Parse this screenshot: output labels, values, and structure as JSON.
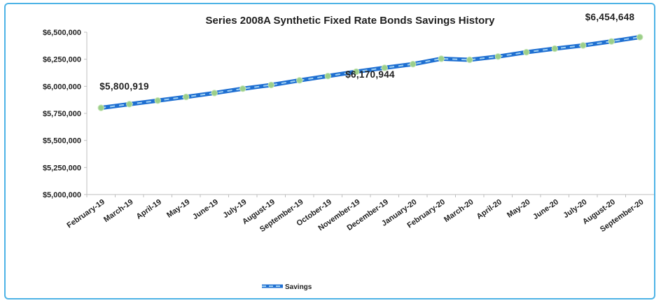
{
  "chart_data": {
    "type": "line",
    "title": "Series 2008A Synthetic Fixed Rate Bonds Savings History",
    "xlabel": "",
    "ylabel": "",
    "categories": [
      "February-19",
      "March-19",
      "April-19",
      "May-19",
      "June-19",
      "July-19",
      "August-19",
      "September-19",
      "October-19",
      "November-19",
      "December-19",
      "January-20",
      "February-20",
      "March-20",
      "April-20",
      "May-20",
      "June-20",
      "July-20",
      "August-20",
      "September-20"
    ],
    "series": [
      {
        "name": "Savings",
        "values": [
          5800919,
          5835000,
          5868000,
          5902000,
          5938000,
          5978000,
          6012000,
          6055000,
          6095000,
          6135000,
          6170944,
          6205000,
          6255000,
          6245000,
          6275000,
          6315000,
          6348000,
          6378000,
          6415000,
          6454648
        ]
      }
    ],
    "ylim": [
      5000000,
      6500000
    ],
    "yticks": [
      5000000,
      5250000,
      5500000,
      5750000,
      6000000,
      6250000,
      6500000
    ],
    "ytick_labels": [
      "$5,000,000",
      "$5,250,000",
      "$5,500,000",
      "$5,750,000",
      "$6,000,000",
      "$6,250,000",
      "$6,500,000"
    ],
    "annotations": [
      {
        "index": 0,
        "text": "$5,800,919"
      },
      {
        "index": 10,
        "text": "$6,170,944"
      },
      {
        "index": 19,
        "text": "$6,454,648"
      }
    ],
    "grid": false,
    "legend": "bottom",
    "colors": {
      "line": "#1f6fd1",
      "line_dash": "#9fd0f2",
      "marker": "#9ccf8a",
      "frame": "#4db3e6",
      "axis": "#bfbfbf"
    }
  }
}
